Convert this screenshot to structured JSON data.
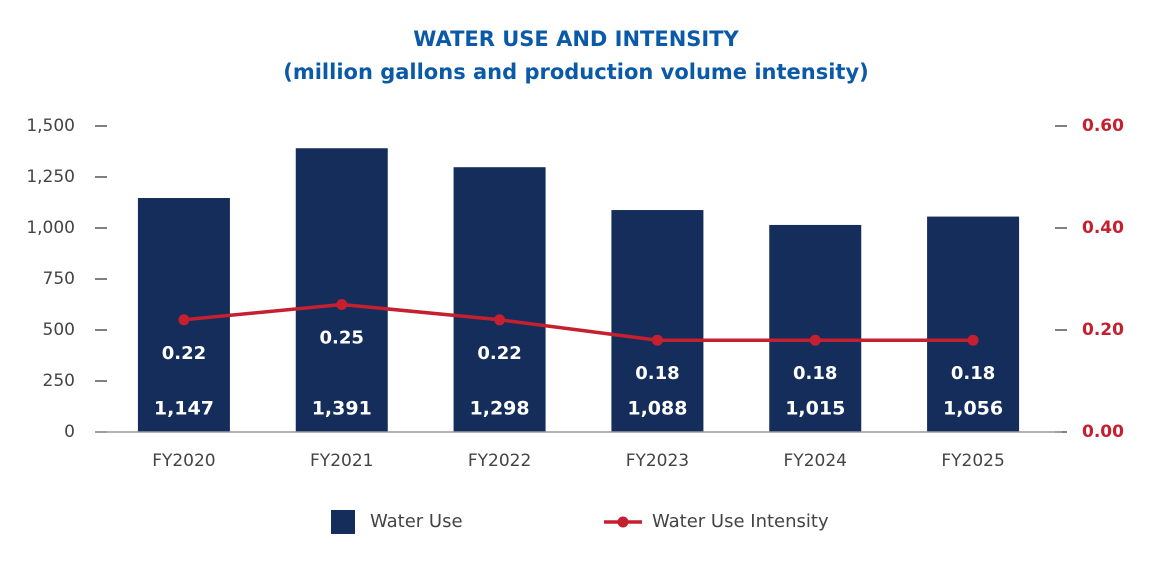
{
  "chart_data": {
    "type": "bar_line",
    "title": "WATER USE AND INTENSITY",
    "subtitle": "(million gallons and production volume intensity)",
    "categories": [
      "FY2020",
      "FY2021",
      "FY2022",
      "FY2023",
      "FY2024",
      "FY2025"
    ],
    "series": [
      {
        "name": "Water Use",
        "type": "bar",
        "color": "#142d5a",
        "values": [
          1147,
          1391,
          1298,
          1088,
          1015,
          1056
        ],
        "value_labels": [
          "1,147",
          "1,391",
          "1,298",
          "1,088",
          "1,015",
          "1,056"
        ]
      },
      {
        "name": "Water Use Intensity",
        "type": "line",
        "axis": "y2",
        "color": "#c4202f",
        "values": [
          0.22,
          0.25,
          0.22,
          0.18,
          0.18,
          0.18
        ]
      }
    ],
    "ylim": [
      0,
      1500
    ],
    "yticks": [
      0,
      250,
      500,
      750,
      {
        "value": 1000,
        "label": "1,000"
      },
      {
        "value": 1250,
        "label": "1,250"
      },
      {
        "value": 1500,
        "label": "1,500"
      }
    ],
    "y2lim": [
      0,
      0.6
    ],
    "y2ticks": [
      {
        "value": 0,
        "label": "0.00"
      },
      {
        "value": 0.2,
        "label": "0.20"
      },
      {
        "value": 0.4,
        "label": "0.40"
      },
      {
        "value": 0.6,
        "label": "0.60"
      }
    ],
    "legend": "bottom"
  }
}
